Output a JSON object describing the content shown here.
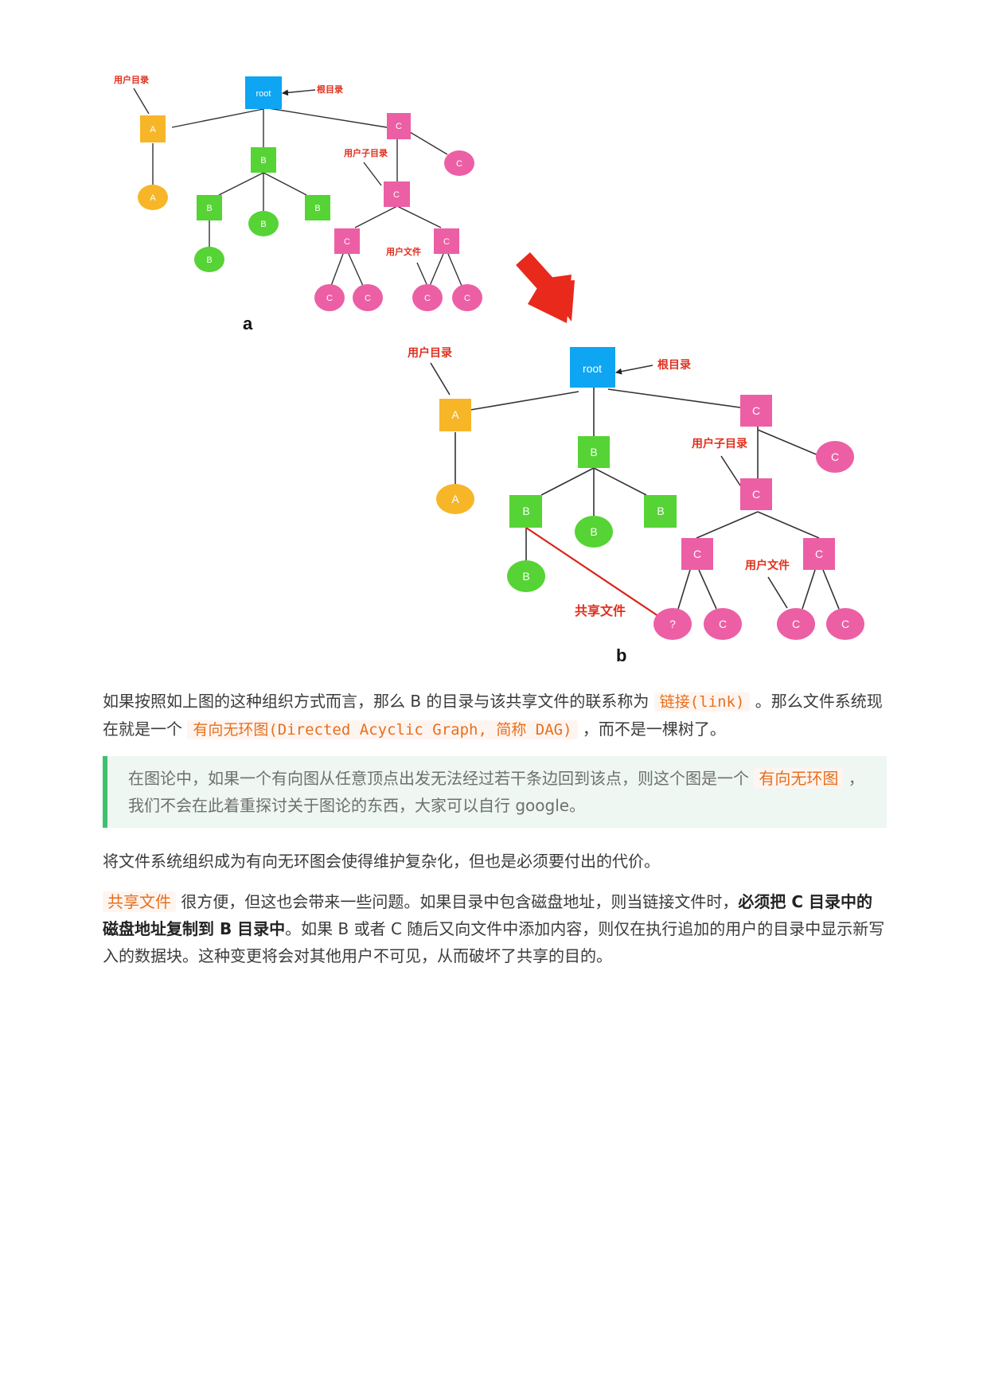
{
  "diagram_a": {
    "caption": "a",
    "labels": {
      "user_dir": "用户目录",
      "root_dir": "根目录",
      "user_subdir": "用户子目录",
      "user_file": "用户文件"
    },
    "nodes": {
      "root": "root",
      "a": "A",
      "b": "B",
      "c": "C"
    }
  },
  "diagram_b": {
    "caption": "b",
    "labels": {
      "user_dir": "用户目录",
      "root_dir": "根目录",
      "user_subdir": "用户子目录",
      "user_file": "用户文件",
      "shared_file": "共享文件"
    },
    "nodes": {
      "root": "root",
      "a": "A",
      "b": "B",
      "c": "C",
      "unknown": "?"
    }
  },
  "colors": {
    "root": "#0ea5f2",
    "a": "#f7b628",
    "b": "#56d335",
    "c": "#ec5fa5",
    "label": "#e0301e",
    "arrow": "#e8291c",
    "quote_bar": "#3dc26b",
    "code": "#e6701e"
  },
  "para1": {
    "t1": "如果按照如上图的这种组织方式而言，那么 B 的目录与该共享文件的联系称为 ",
    "code1": "链接(link)",
    "t2": " 。那么文件系统现在就是一个 ",
    "code2": "有向无环图(Directed Acyclic Graph, 简称 DAG)",
    "t3": " ，而不是一棵树了。"
  },
  "quote": {
    "t1": "在图论中，如果一个有向图从任意顶点出发无法经过若干条边回到该点，则这个图是一个 ",
    "hl": "有向无环图",
    "t2": " ，我们不会在此着重探讨关于图论的东西，大家可以自行 google。"
  },
  "para2": {
    "text": "将文件系统组织成为有向无环图会使得维护复杂化，但也是必须要付出的代价。"
  },
  "para3": {
    "hl": "共享文件",
    "t1": " 很方便，但这也会带来一些问题。如果目录中包含磁盘地址，则当链接文件时，",
    "bold": "必须把 C 目录中的磁盘地址复制到 B 目录中",
    "t2": "。如果 B 或者 C 随后又向文件中添加内容，则仅在执行追加的用户的目录中显示新写入的数据块。这种变更将会对其他用户不可见，从而破坏了共享的目的。"
  }
}
